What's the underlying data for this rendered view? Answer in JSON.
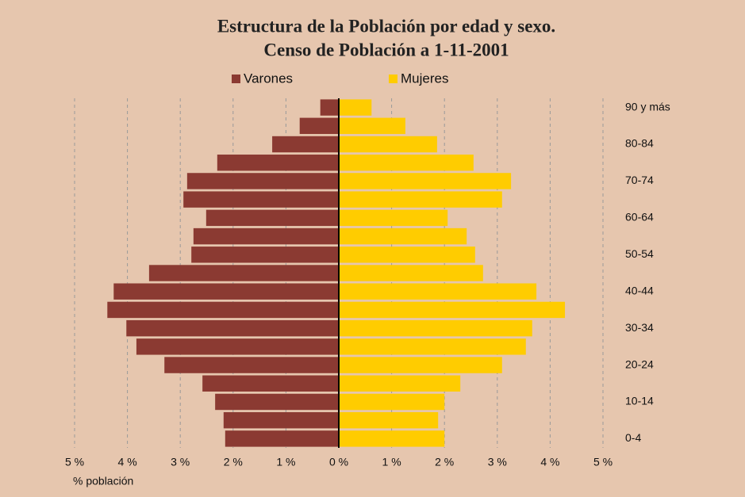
{
  "chart_data": {
    "type": "pyramid",
    "title": "Estructura de la Población por edad y sexo.",
    "subtitle": "Censo de Población a 1-11-2001",
    "xlabel": "% población",
    "categories": [
      "0-4",
      null,
      "10-14",
      null,
      "20-24",
      null,
      "30-34",
      null,
      "40-44",
      null,
      "50-54",
      null,
      "60-64",
      null,
      "70-74",
      null,
      "80-84",
      null,
      "90 y más"
    ],
    "series": [
      {
        "name": "Varones",
        "color": "#8b3a32",
        "values": [
          -2.15,
          -2.18,
          -2.34,
          -2.58,
          -3.3,
          -3.83,
          -4.02,
          -4.38,
          -4.26,
          -3.59,
          -2.79,
          -2.75,
          -2.51,
          -2.94,
          -2.87,
          -2.3,
          -1.26,
          -0.74,
          -0.35
        ]
      },
      {
        "name": "Mujeres",
        "color": "#ffcc00",
        "values": [
          2.0,
          1.88,
          2.0,
          2.3,
          3.09,
          3.54,
          3.66,
          4.28,
          3.74,
          2.73,
          2.58,
          2.42,
          2.06,
          3.09,
          3.26,
          2.55,
          1.86,
          1.26,
          0.62
        ]
      }
    ],
    "xlim": [
      -5,
      5
    ],
    "xticks": [
      {
        "value": -5,
        "label": "5 %"
      },
      {
        "value": -4,
        "label": "4 %"
      },
      {
        "value": -3,
        "label": "3 %"
      },
      {
        "value": -2,
        "label": "2 %"
      },
      {
        "value": -1,
        "label": "1 %"
      },
      {
        "value": 0,
        "label": "0 %"
      },
      {
        "value": 1,
        "label": "1 %"
      },
      {
        "value": 2,
        "label": "2 %"
      },
      {
        "value": 3,
        "label": "3 %"
      },
      {
        "value": 4,
        "label": "4 %"
      },
      {
        "value": 5,
        "label": "5 %"
      }
    ],
    "grid": true
  }
}
